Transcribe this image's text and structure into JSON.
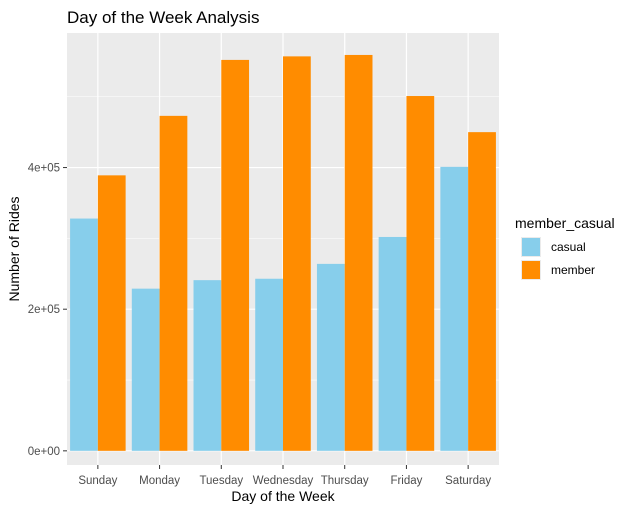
{
  "chart_data": {
    "type": "bar",
    "title": "Day of the Week Analysis",
    "xlabel": "Day of the Week",
    "ylabel": "Number of Rides",
    "categories": [
      "Sunday",
      "Monday",
      "Tuesday",
      "Wednesday",
      "Thursday",
      "Friday",
      "Saturday"
    ],
    "series": [
      {
        "name": "casual",
        "color": "#87CEEB",
        "values": [
          328000,
          229000,
          241000,
          243000,
          264000,
          302000,
          401000
        ]
      },
      {
        "name": "member",
        "color": "#FF8C00",
        "values": [
          389000,
          473000,
          552000,
          557000,
          559000,
          501000,
          450000
        ]
      }
    ],
    "y_ticks": [
      {
        "value": 0,
        "label": "0e+00"
      },
      {
        "value": 200000,
        "label": "2e+05"
      },
      {
        "value": 400000,
        "label": "4e+05"
      }
    ],
    "ylim": [
      -20000,
      590000
    ],
    "grid": true,
    "panel_background": "#EBEBEB",
    "grid_color": "#FFFFFF",
    "legend": {
      "title": "member_casual",
      "placement": "right"
    }
  }
}
